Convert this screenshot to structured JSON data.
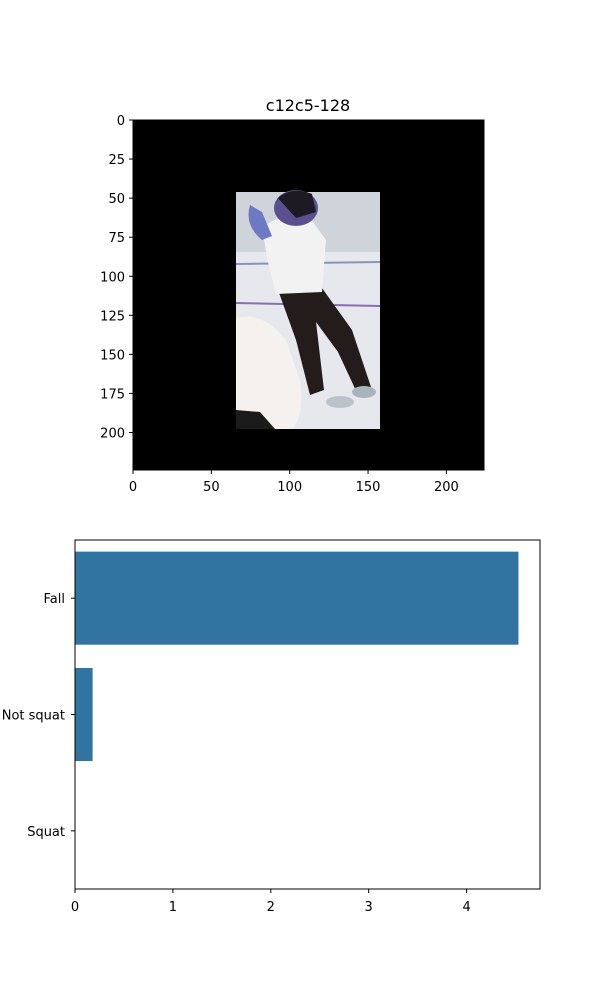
{
  "chart_data": [
    {
      "type": "image",
      "title": "c12c5-128",
      "xlim": [
        0,
        224
      ],
      "ylim": [
        224,
        0
      ],
      "x_ticks": [
        0,
        50,
        100,
        150,
        200
      ],
      "y_ticks": [
        0,
        25,
        50,
        75,
        100,
        125,
        150,
        175,
        200
      ],
      "image": {
        "background_color": "#000000",
        "content_extent": {
          "x": [
            66,
            158
          ],
          "y": [
            46,
            198
          ]
        },
        "subject": "person-in-white-shirt-and-dark-pants"
      }
    },
    {
      "type": "bar",
      "orientation": "horizontal",
      "categories": [
        "Fall",
        "Not squat",
        "Squat"
      ],
      "values": [
        4.53,
        0.18,
        0.0
      ],
      "xlim": [
        0,
        4.75
      ],
      "x_ticks": [
        0,
        1,
        2,
        3,
        4
      ],
      "bar_color": "#3274a1",
      "title": "",
      "xlabel": "",
      "ylabel": ""
    }
  ]
}
